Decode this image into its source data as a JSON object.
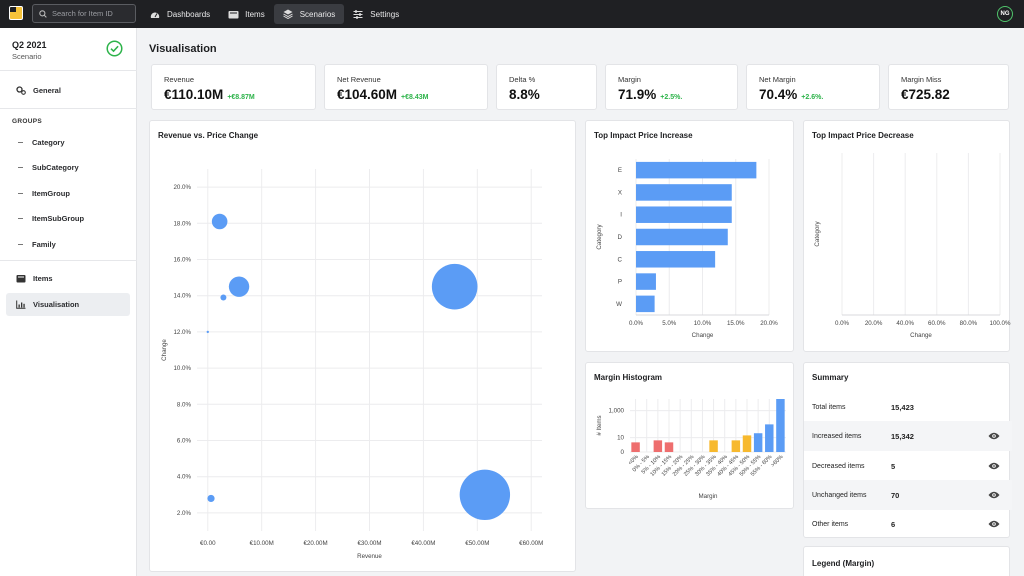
{
  "app": {
    "search_placeholder": "Search for Item ID",
    "nav": [
      {
        "label": "Dashboards",
        "icon": "gauge-icon",
        "active": false
      },
      {
        "label": "Items",
        "icon": "box-icon",
        "active": false
      },
      {
        "label": "Scenarios",
        "icon": "layers-icon",
        "active": true
      },
      {
        "label": "Settings",
        "icon": "sliders-icon",
        "active": false
      }
    ],
    "user_initials": "NG"
  },
  "sidebar": {
    "title": "Q2 2021",
    "subtitle": "Scenario",
    "status_color": "#2db34a",
    "general_label": "General",
    "groups_title": "GROUPS",
    "groups": [
      "Category",
      "SubCategory",
      "ItemGroup",
      "ItemSubGroup",
      "Family"
    ],
    "items_label": "Items",
    "visualisation_label": "Visualisation"
  },
  "page": {
    "title": "Visualisation"
  },
  "kpis": [
    {
      "label": "Revenue",
      "value": "€110.10M",
      "delta": "+€8.87M"
    },
    {
      "label": "Net Revenue",
      "value": "€104.60M",
      "delta": "+€8.43M"
    },
    {
      "label": "Delta %",
      "value": "8.8%",
      "delta": ""
    },
    {
      "label": "Margin",
      "value": "71.9%",
      "delta": "+2.5%."
    },
    {
      "label": "Net Margin",
      "value": "70.4%",
      "delta": "+2.6%."
    },
    {
      "label": "Margin Miss",
      "value": "€725.82",
      "delta": ""
    }
  ],
  "colors": {
    "accent": "#5b9cf5",
    "red": "#ee6e6e",
    "amber": "#f7b92e",
    "positive": "#2db34a"
  },
  "chart_data": [
    {
      "id": "revenue-vs-price-change",
      "type": "scatter",
      "title": "Revenue vs. Price Change",
      "xlabel": "Revenue",
      "ylabel": "Change",
      "xlim": [
        -2,
        62
      ],
      "ylim": [
        1,
        21
      ],
      "x_ticks": [
        "€0.00",
        "€10.00M",
        "€20.00M",
        "€30.00M",
        "€40.00M",
        "€50.00M",
        "€60.00M"
      ],
      "y_ticks": [
        "2.0%",
        "4.0%",
        "6.0%",
        "8.0%",
        "10.0%",
        "12.0%",
        "14.0%",
        "16.0%",
        "18.0%",
        "20.0%"
      ],
      "grid": true,
      "points": [
        {
          "x": 2.2,
          "y": 18.1,
          "size": 1.3
        },
        {
          "x": 5.8,
          "y": 14.5,
          "size": 1.7
        },
        {
          "x": 2.9,
          "y": 13.9,
          "size": 0.5
        },
        {
          "x": 0.0,
          "y": 12.0,
          "size": 0.2
        },
        {
          "x": 45.8,
          "y": 14.5,
          "size": 3.8
        },
        {
          "x": 0.6,
          "y": 2.8,
          "size": 0.6
        },
        {
          "x": 51.4,
          "y": 3.0,
          "size": 4.2
        }
      ]
    },
    {
      "id": "top-impact-price-increase",
      "type": "bar",
      "orientation": "horizontal",
      "title": "Top Impact Price Increase",
      "xlabel": "Change",
      "ylabel": "Category",
      "categories": [
        "E",
        "X",
        "I",
        "D",
        "C",
        "P",
        "W"
      ],
      "values": [
        18.1,
        14.4,
        14.4,
        13.8,
        11.9,
        3.0,
        2.8
      ],
      "x_ticks": [
        "0.0%",
        "5.0%",
        "10.0%",
        "15.0%",
        "20.0%"
      ],
      "xlim": [
        0,
        20
      ],
      "grid": true
    },
    {
      "id": "top-impact-price-decrease",
      "type": "bar",
      "orientation": "horizontal",
      "title": "Top Impact Price Decrease",
      "xlabel": "Change",
      "ylabel": "Category",
      "categories": [],
      "values": [],
      "x_ticks": [
        "0.0%",
        "20.0%",
        "40.0%",
        "60.0%",
        "80.0%",
        "100.0%"
      ],
      "xlim": [
        0,
        100
      ],
      "grid": true
    },
    {
      "id": "margin-histogram",
      "type": "bar",
      "title": "Margin Histogram",
      "xlabel": "Margin",
      "ylabel": "# Items",
      "y_scale": "log",
      "y_ticks": [
        "0",
        "10",
        "1,000"
      ],
      "categories": [
        "<0%",
        "0% - 5%",
        "5% - 10%",
        "10% - 15%",
        "15% - 20%",
        "20% - 25%",
        "25% - 30%",
        "30% - 35%",
        "35% - 40%",
        "40% - 45%",
        "45% - 50%",
        "50% - 55%",
        "55% - 60%",
        ">60%"
      ],
      "values": [
        4,
        0,
        6,
        4,
        0,
        0,
        0,
        6,
        0,
        6,
        15,
        22,
        100,
        7000
      ],
      "bar_colors": [
        "red",
        "red",
        "red",
        "red",
        "red",
        "amber",
        "amber",
        "amber",
        "amber",
        "amber",
        "amber",
        "accent",
        "accent",
        "accent"
      ]
    }
  ],
  "summary": {
    "title": "Summary",
    "rows": [
      {
        "label": "Total items",
        "value": "15,423",
        "eye": false
      },
      {
        "label": "Increased items",
        "value": "15,342",
        "eye": true
      },
      {
        "label": "Decreased items",
        "value": "5",
        "eye": true
      },
      {
        "label": "Unchanged items",
        "value": "70",
        "eye": true
      },
      {
        "label": "Other items",
        "value": "6",
        "eye": true
      }
    ]
  },
  "legend": {
    "title": "Legend (Margin)"
  }
}
